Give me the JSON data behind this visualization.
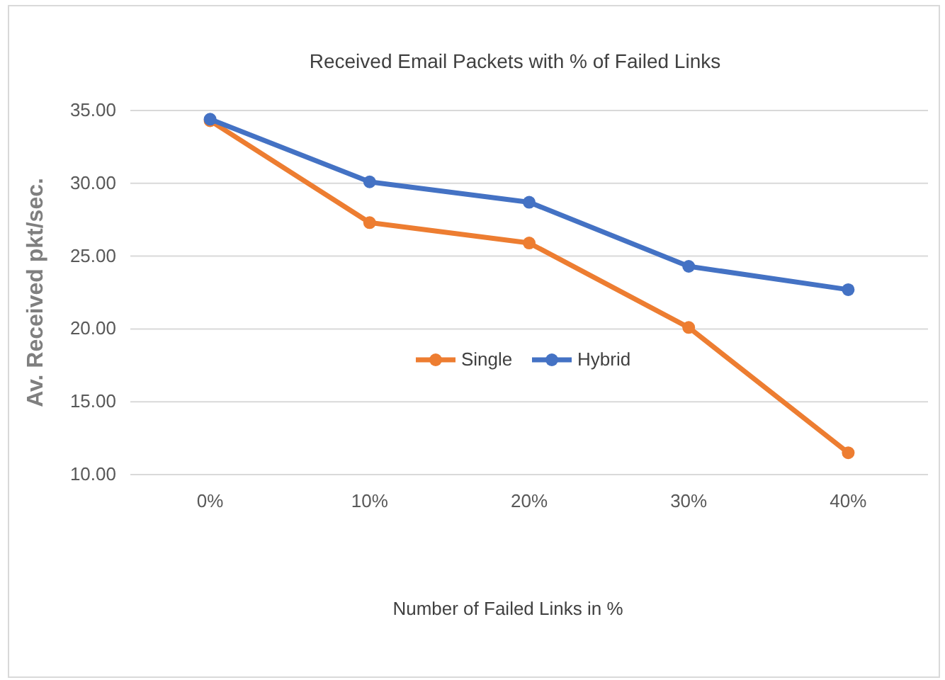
{
  "chart_data": {
    "type": "line",
    "title": "Received Email Packets with % of Failed Links",
    "xlabel": "Number of Failed Links in %",
    "ylabel": "Av. Received pkt/sec.",
    "categories": [
      "0%",
      "10%",
      "20%",
      "30%",
      "40%"
    ],
    "series": [
      {
        "name": "Single",
        "color": "#ed7d31",
        "values": [
          34.3,
          27.3,
          25.9,
          20.1,
          11.5
        ]
      },
      {
        "name": "Hybrid",
        "color": "#4472c4",
        "values": [
          34.4,
          30.1,
          28.7,
          24.3,
          22.7
        ]
      }
    ],
    "ylim": [
      10,
      35
    ],
    "yticks": [
      {
        "value": 10,
        "label": "10.00"
      },
      {
        "value": 15,
        "label": "15.00"
      },
      {
        "value": 20,
        "label": "20.00"
      },
      {
        "value": 25,
        "label": "25.00"
      },
      {
        "value": 30,
        "label": "30.00"
      },
      {
        "value": 35,
        "label": "35.00"
      }
    ],
    "grid": "y",
    "legend": "center",
    "marker": "circle",
    "line_style": "solid"
  }
}
